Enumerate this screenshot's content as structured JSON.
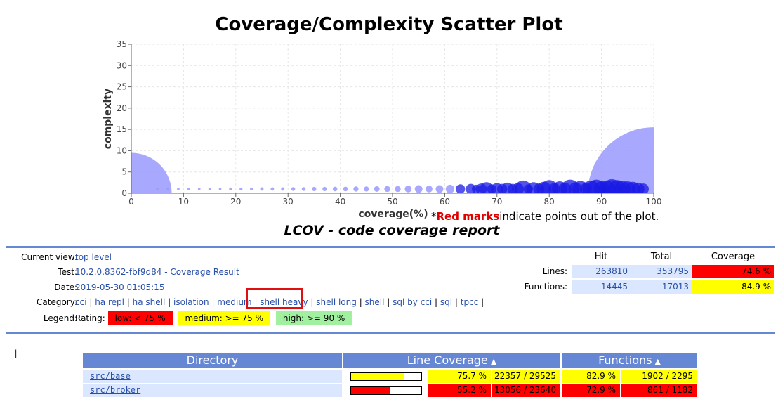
{
  "chart_data": {
    "type": "scatter",
    "title": "Coverage/Complexity Scatter Plot",
    "xlabel": "coverage(%)",
    "ylabel": "complexity",
    "xlim": [
      0,
      100
    ],
    "ylim": [
      0,
      35
    ],
    "xticks": [
      "0",
      "10",
      "20",
      "30",
      "40",
      "50",
      "60",
      "70",
      "80",
      "90",
      "100"
    ],
    "yticks": [
      "0",
      "5",
      "10",
      "15",
      "20",
      "25",
      "30",
      "35"
    ],
    "grid": true,
    "note_prefix": "*",
    "note_red": "Red marks",
    "note_rest": "indicate points out of the plot.",
    "points": [
      {
        "x": 0,
        "y": 0,
        "r": 9.5
      },
      {
        "x": 100,
        "y": 0,
        "r": 15.5
      },
      {
        "x": 5,
        "y": 1,
        "r": 0.3
      },
      {
        "x": 7,
        "y": 1,
        "r": 0.3
      },
      {
        "x": 9,
        "y": 1,
        "r": 0.3
      },
      {
        "x": 11,
        "y": 1,
        "r": 0.3
      },
      {
        "x": 13,
        "y": 1,
        "r": 0.3
      },
      {
        "x": 15,
        "y": 1,
        "r": 0.3
      },
      {
        "x": 17,
        "y": 1,
        "r": 0.3
      },
      {
        "x": 19,
        "y": 1,
        "r": 0.35
      },
      {
        "x": 21,
        "y": 1,
        "r": 0.35
      },
      {
        "x": 23,
        "y": 1,
        "r": 0.35
      },
      {
        "x": 25,
        "y": 1,
        "r": 0.4
      },
      {
        "x": 27,
        "y": 1,
        "r": 0.4
      },
      {
        "x": 29,
        "y": 1,
        "r": 0.4
      },
      {
        "x": 31,
        "y": 1,
        "r": 0.45
      },
      {
        "x": 33,
        "y": 1,
        "r": 0.45
      },
      {
        "x": 35,
        "y": 1,
        "r": 0.5
      },
      {
        "x": 37,
        "y": 1,
        "r": 0.5
      },
      {
        "x": 39,
        "y": 1,
        "r": 0.55
      },
      {
        "x": 41,
        "y": 1,
        "r": 0.55
      },
      {
        "x": 43,
        "y": 1,
        "r": 0.6
      },
      {
        "x": 45,
        "y": 1,
        "r": 0.6
      },
      {
        "x": 47,
        "y": 1,
        "r": 0.65
      },
      {
        "x": 49,
        "y": 1,
        "r": 0.7
      },
      {
        "x": 51,
        "y": 1,
        "r": 0.7
      },
      {
        "x": 53,
        "y": 1,
        "r": 0.8
      },
      {
        "x": 55,
        "y": 1,
        "r": 0.9
      },
      {
        "x": 57,
        "y": 1,
        "r": 0.8
      },
      {
        "x": 59,
        "y": 1,
        "r": 0.9
      },
      {
        "x": 61,
        "y": 1,
        "r": 1.0
      },
      {
        "x": 63,
        "y": 1,
        "r": 1.1
      },
      {
        "x": 65,
        "y": 1,
        "r": 1.2
      },
      {
        "x": 67,
        "y": 1,
        "r": 1.3
      },
      {
        "x": 68,
        "y": 1,
        "r": 1.6
      },
      {
        "x": 70,
        "y": 1,
        "r": 1.4
      },
      {
        "x": 72,
        "y": 1,
        "r": 1.5
      },
      {
        "x": 74,
        "y": 1,
        "r": 1.4
      },
      {
        "x": 75,
        "y": 1,
        "r": 2.0
      },
      {
        "x": 77,
        "y": 1,
        "r": 1.6
      },
      {
        "x": 79,
        "y": 1,
        "r": 1.7
      },
      {
        "x": 80,
        "y": 1,
        "r": 2.1
      },
      {
        "x": 82,
        "y": 1,
        "r": 1.8
      },
      {
        "x": 84,
        "y": 1,
        "r": 2.2
      },
      {
        "x": 86,
        "y": 1,
        "r": 1.9
      },
      {
        "x": 88,
        "y": 1,
        "r": 2.0
      },
      {
        "x": 89,
        "y": 1,
        "r": 2.2
      },
      {
        "x": 91,
        "y": 1,
        "r": 2.0
      },
      {
        "x": 92,
        "y": 1,
        "r": 2.3
      },
      {
        "x": 93,
        "y": 1,
        "r": 2.1
      },
      {
        "x": 94,
        "y": 1,
        "r": 1.9
      },
      {
        "x": 95,
        "y": 1,
        "r": 1.8
      },
      {
        "x": 96,
        "y": 1,
        "r": 1.7
      },
      {
        "x": 97,
        "y": 1,
        "r": 1.5
      },
      {
        "x": 98,
        "y": 1,
        "r": 1.3
      },
      {
        "x": 73,
        "y": 1,
        "r": 1.2
      },
      {
        "x": 76,
        "y": 1,
        "r": 1.1
      },
      {
        "x": 78,
        "y": 1,
        "r": 1.3
      },
      {
        "x": 81,
        "y": 1,
        "r": 1.4
      },
      {
        "x": 83,
        "y": 1,
        "r": 1.5
      },
      {
        "x": 85,
        "y": 1,
        "r": 1.6
      },
      {
        "x": 87,
        "y": 1,
        "r": 1.4
      },
      {
        "x": 90,
        "y": 1,
        "r": 1.8
      },
      {
        "x": 66,
        "y": 1,
        "r": 1.0
      },
      {
        "x": 69,
        "y": 1,
        "r": 1.1
      },
      {
        "x": 71,
        "y": 1,
        "r": 1.2
      }
    ],
    "colors": {
      "early": "#9999ff",
      "late": "#1a1ae6"
    }
  },
  "report": {
    "title": "LCOV - code coverage report",
    "current_view_label": "Current view:",
    "current_view_value": "top level",
    "test_label": "Test:",
    "test_value": "10.2.0.8362-fbf9d84 - Coverage Result",
    "date_label": "Date:",
    "date_value": "2019-05-30 01:05:15",
    "category_label": "Category:",
    "categories": [
      "cci",
      "ha repl",
      "ha shell",
      "isolation",
      "medium",
      "shell heavy",
      "shell long",
      "shell",
      "sql by cci",
      "sql",
      "tpcc"
    ],
    "legend_label": "Legend:",
    "rating_label": "Rating:",
    "rating_low": "low: < 75 %",
    "rating_medium": "medium: >= 75 %",
    "rating_high": "high: >= 90 %"
  },
  "summary": {
    "hit_header": "Hit",
    "total_header": "Total",
    "coverage_header": "Coverage",
    "lines_label": "Lines:",
    "lines_hit": "263810",
    "lines_total": "353795",
    "lines_coverage": "74.6 %",
    "functions_label": "Functions:",
    "functions_hit": "14445",
    "functions_total": "17013",
    "functions_coverage": "84.9 %"
  },
  "colors": {
    "low": "#ff0000",
    "medium": "#ffff00",
    "high": "#a0f0a0",
    "header": "#6688d4",
    "entry": "#dae7fe",
    "link": "#284fa8"
  },
  "directory_table": {
    "directory_header": "Directory",
    "line_coverage_header": "Line Coverage",
    "functions_header": "Functions",
    "rows": [
      {
        "name": "src/base",
        "line_pct": "75.7 %",
        "line_fraction": 0.757,
        "line_count": "22357 / 29525",
        "func_pct": "82.9 %",
        "func_count": "1902 / 2295"
      },
      {
        "name": "src/broker",
        "line_pct": "55.2 %",
        "line_fraction": 0.552,
        "line_count": "13056 / 23640",
        "func_pct": "72.9 %",
        "func_count": "861 / 1182"
      }
    ]
  }
}
